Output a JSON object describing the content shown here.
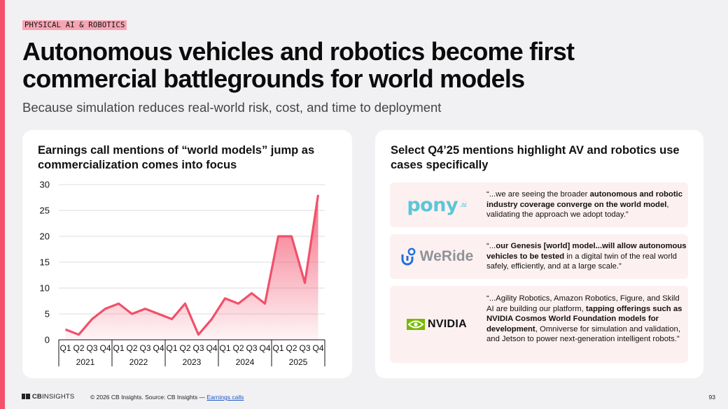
{
  "tag": "PHYSICAL AI & ROBOTICS",
  "title": "Autonomous vehicles and robotics become first commercial battlegrounds for world models",
  "subtitle": "Because simulation reduces real-world risk, cost, and time to deployment",
  "left_card": {
    "heading": "Earnings call mentions of “world models” jump as commercialization comes into focus"
  },
  "right_card": {
    "heading": "Select Q4’25 mentions highlight AV and robotics use cases specifically",
    "quotes": [
      {
        "company": "pony",
        "company_suffix": ".ai",
        "before": "“...we are seeing the broader ",
        "bold": "autonomous and robotic industry coverage converge on the world model",
        "after": ", validating the approach we adopt today.”"
      },
      {
        "company": "WeRide",
        "before": "“...",
        "bold": "our Genesis [world] model...will allow autonomous vehicles to be tested",
        "after": " in a digital twin of the real world safely, efficiently, and at a large scale.”"
      },
      {
        "company": "NVIDIA",
        "before": "“...Agility Robotics, Amazon Robotics, Figure, and Skild AI are building our platform, ",
        "bold": "tapping offerings such as NVIDIA Cosmos World Foundation models for development",
        "after": ", Omniverse for simulation and validation, and Jetson to power next-generation intelligent robots.”"
      }
    ]
  },
  "chart_data": {
    "type": "area",
    "title": "Earnings call mentions of “world models” jump as commercialization comes into focus",
    "xlabel": "",
    "ylabel": "",
    "ylim": [
      0,
      30
    ],
    "yticks": [
      0,
      5,
      10,
      15,
      20,
      25,
      30
    ],
    "years": [
      "2021",
      "2022",
      "2023",
      "2024",
      "2025"
    ],
    "categories": [
      "Q1",
      "Q2",
      "Q3",
      "Q4",
      "Q1",
      "Q2",
      "Q3",
      "Q4",
      "Q1",
      "Q2",
      "Q3",
      "Q4",
      "Q1",
      "Q2",
      "Q3",
      "Q4",
      "Q1",
      "Q2",
      "Q3",
      "Q4"
    ],
    "values": [
      2,
      1,
      4,
      6,
      7,
      5,
      6,
      5,
      4,
      7,
      1,
      4,
      8,
      7,
      9,
      7,
      20,
      20,
      11,
      28
    ],
    "grid": true,
    "legend": "none",
    "color": "#f2506b"
  },
  "footer": {
    "logo_bold": "CB",
    "logo_light": "INSIGHTS",
    "copyright": "© 2026 CB Insights. Source: CB Insights — ",
    "link": "Earnings calls",
    "page": "93"
  }
}
